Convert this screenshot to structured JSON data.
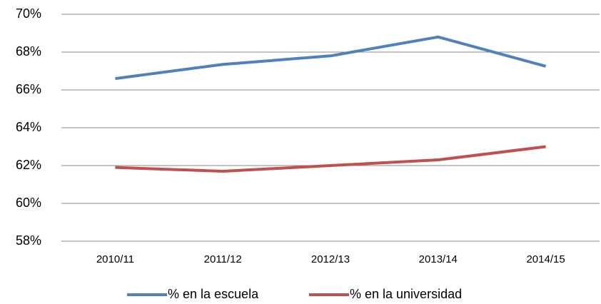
{
  "chart_data": {
    "type": "line",
    "categories": [
      "2010/11",
      "2011/12",
      "2012/13",
      "2013/14",
      "2014/15"
    ],
    "series": [
      {
        "name": "% en la escuela",
        "color": "#4f81bd",
        "values": [
          66.6,
          67.35,
          67.8,
          68.8,
          67.25
        ]
      },
      {
        "name": "% en la universidad",
        "color": "#c0504d",
        "values": [
          61.9,
          61.7,
          62.0,
          62.3,
          63.0
        ]
      }
    ],
    "ylim": [
      58,
      70
    ],
    "yticks": [
      {
        "value": 58,
        "label": "58%"
      },
      {
        "value": 60,
        "label": "60%"
      },
      {
        "value": 62,
        "label": "62%"
      },
      {
        "value": 64,
        "label": "64%"
      },
      {
        "value": 66,
        "label": "66%"
      },
      {
        "value": 68,
        "label": "68%"
      },
      {
        "value": 70,
        "label": "70%"
      }
    ],
    "grid": true,
    "legend": "bottom"
  }
}
